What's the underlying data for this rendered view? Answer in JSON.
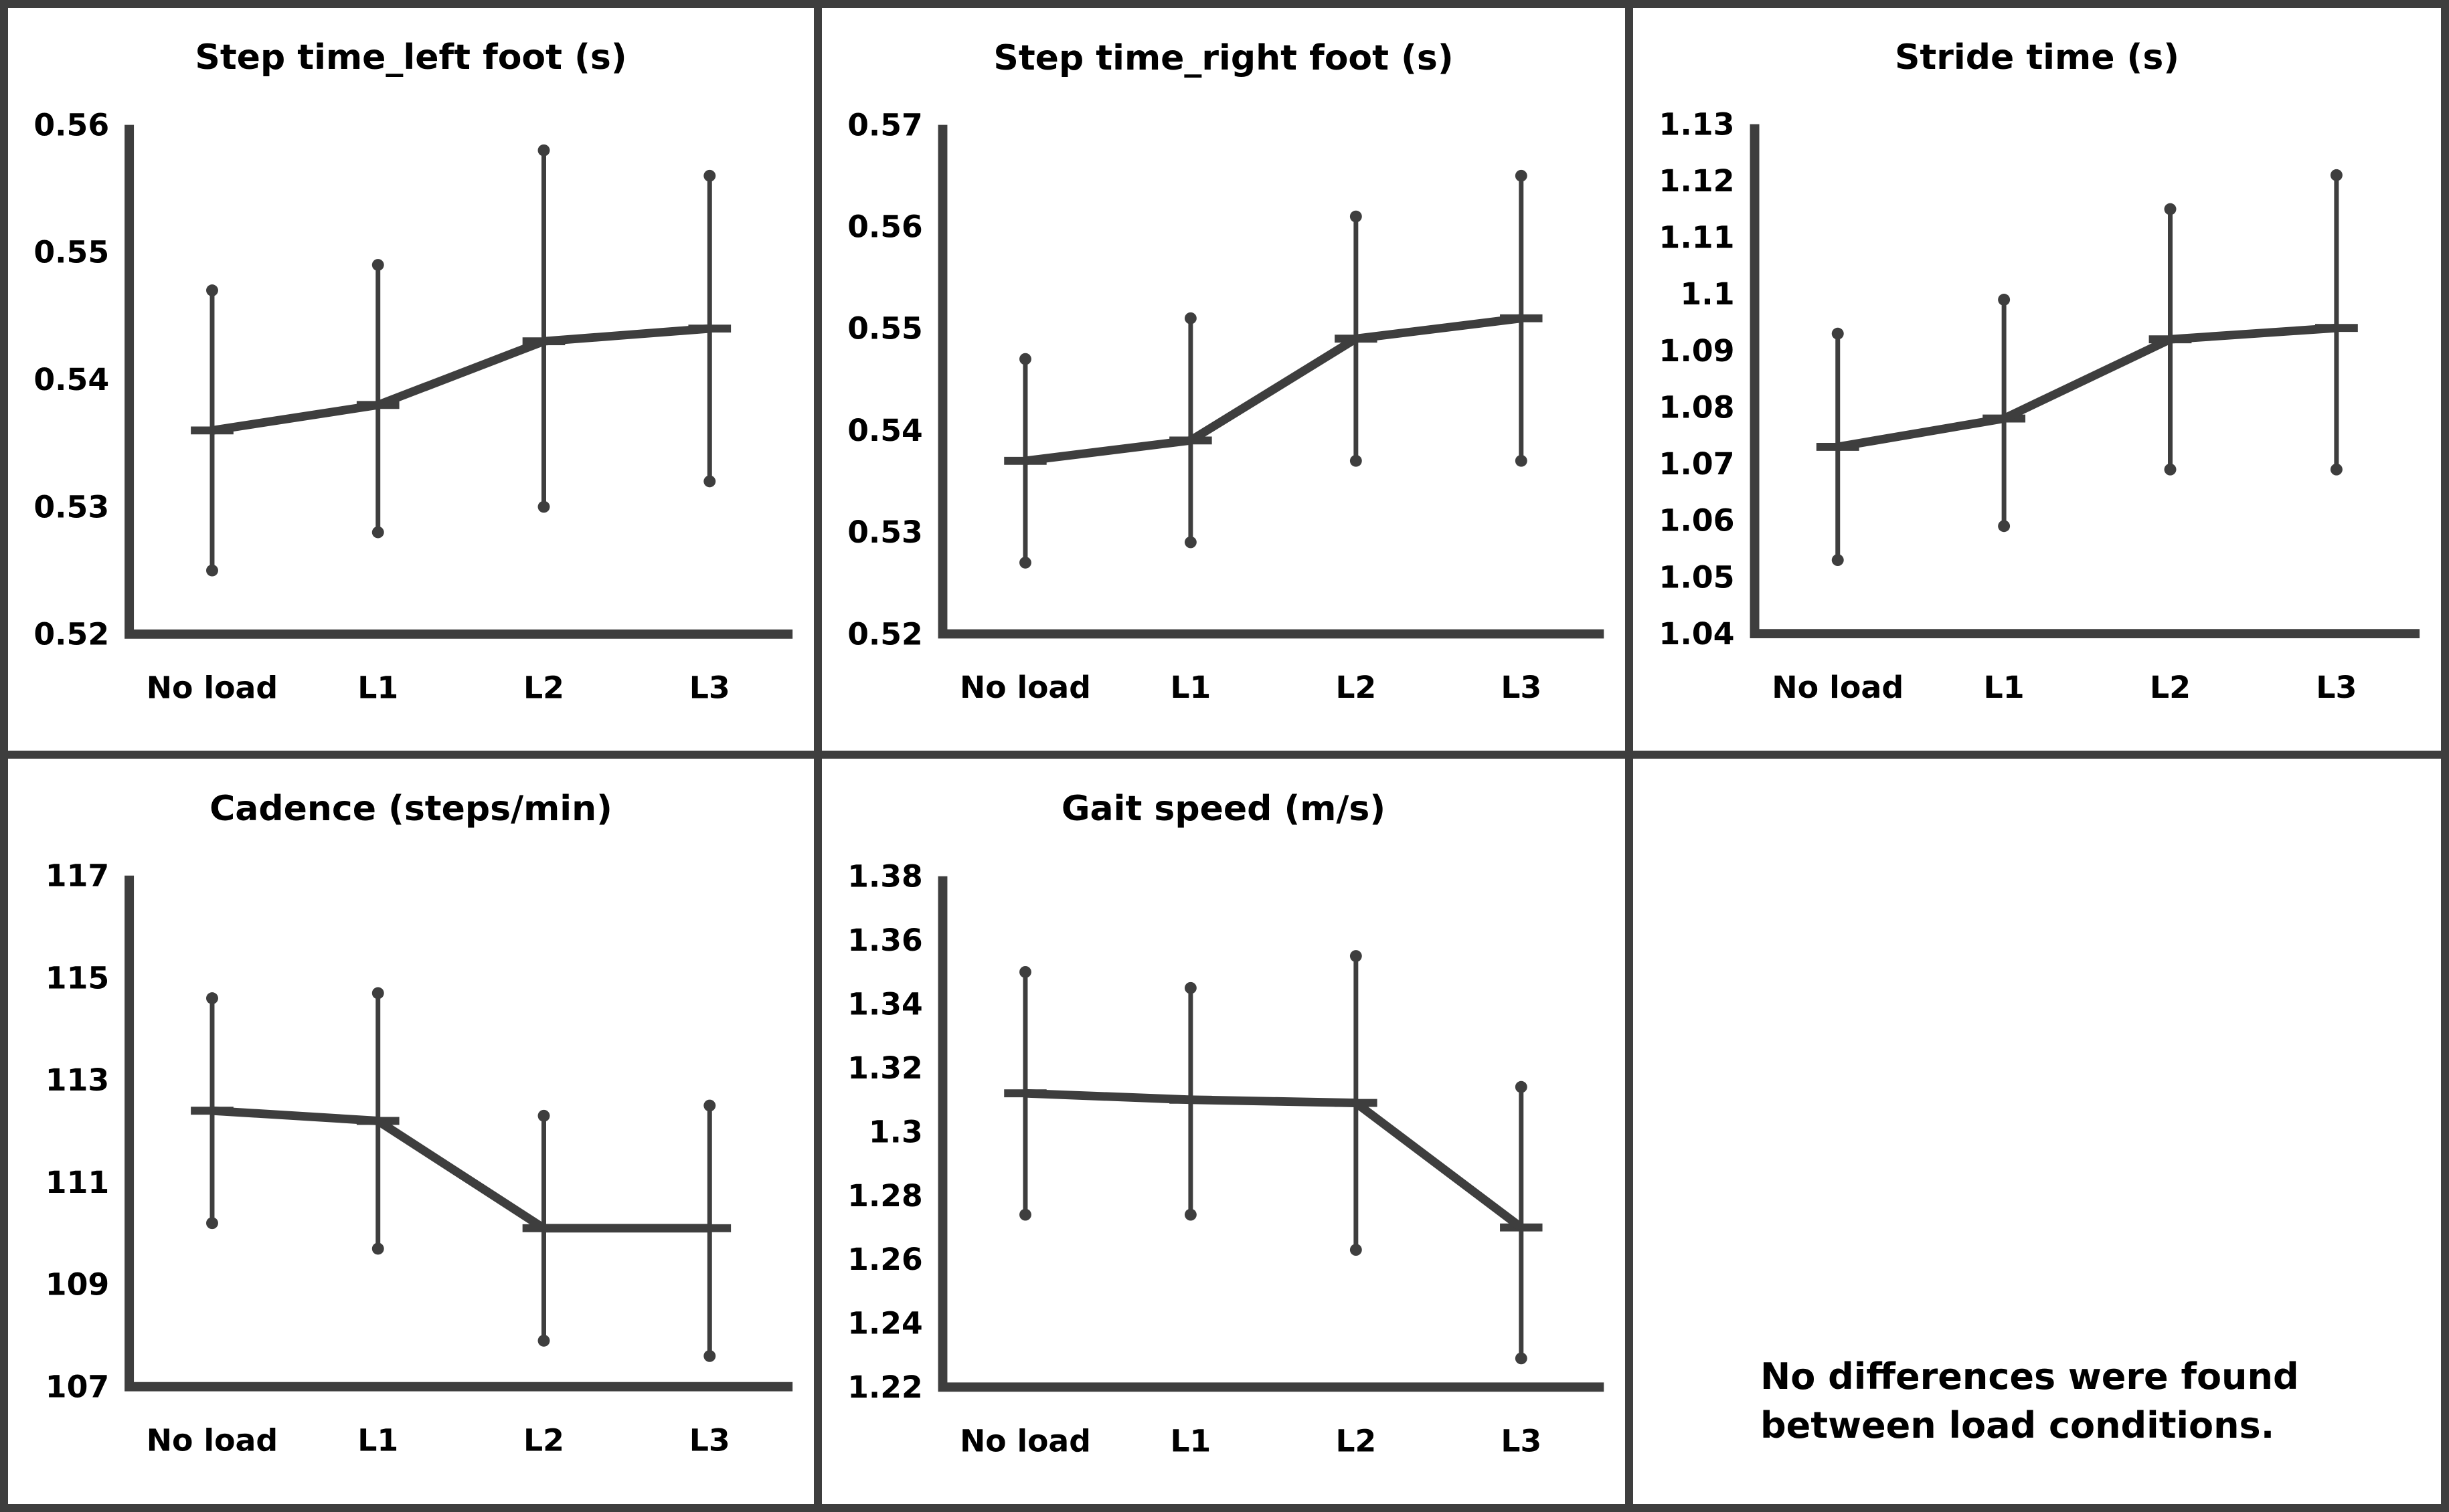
{
  "figure": {
    "note_line1": "No differences were found",
    "note_line2": "between load conditions."
  },
  "colors": {
    "ink": "#3e3e3e",
    "text": "#000000",
    "background": "#ffffff"
  },
  "categories": [
    "No load",
    "L1",
    "L2",
    "L3"
  ],
  "chart_data": [
    {
      "type": "line",
      "title": "Step time_left foot (s)",
      "categories": [
        "No load",
        "L1",
        "L2",
        "L3"
      ],
      "ylim": [
        0.52,
        0.56
      ],
      "yticks": [
        0.52,
        0.53,
        0.54,
        0.55,
        0.56
      ],
      "ytick_labels": [
        "0.52",
        "0.53",
        "0.54",
        "0.55",
        "0.56"
      ],
      "series": [
        {
          "name": "mean",
          "values": [
            0.536,
            0.538,
            0.543,
            0.544
          ]
        }
      ],
      "error_high": [
        0.547,
        0.549,
        0.558,
        0.556
      ],
      "error_low": [
        0.525,
        0.528,
        0.53,
        0.532
      ],
      "grid": false,
      "legend": "none"
    },
    {
      "type": "line",
      "title": "Step time_right foot (s)",
      "categories": [
        "No load",
        "L1",
        "L2",
        "L3"
      ],
      "ylim": [
        0.52,
        0.57
      ],
      "yticks": [
        0.52,
        0.53,
        0.54,
        0.55,
        0.56,
        0.57
      ],
      "ytick_labels": [
        "0.52",
        "0.53",
        "0.54",
        "0.55",
        "0.56",
        "0.57"
      ],
      "series": [
        {
          "name": "mean",
          "values": [
            0.537,
            0.539,
            0.549,
            0.551
          ]
        }
      ],
      "error_high": [
        0.547,
        0.551,
        0.561,
        0.565
      ],
      "error_low": [
        0.527,
        0.529,
        0.537,
        0.537
      ],
      "grid": false,
      "legend": "none"
    },
    {
      "type": "line",
      "title": "Stride time (s)",
      "categories": [
        "No load",
        "L1",
        "L2",
        "L3"
      ],
      "ylim": [
        1.04,
        1.13
      ],
      "yticks": [
        1.04,
        1.05,
        1.06,
        1.07,
        1.08,
        1.09,
        1.1,
        1.11,
        1.12,
        1.13
      ],
      "ytick_labels": [
        "1.04",
        "1.05",
        "1.06",
        "1.07",
        "1.08",
        "1.09",
        "1.1",
        "1.11",
        "1.12",
        "1.13"
      ],
      "series": [
        {
          "name": "mean",
          "values": [
            1.073,
            1.078,
            1.092,
            1.094
          ]
        }
      ],
      "error_high": [
        1.093,
        1.099,
        1.115,
        1.121
      ],
      "error_low": [
        1.053,
        1.059,
        1.069,
        1.069
      ],
      "grid": false,
      "legend": "none"
    },
    {
      "type": "line",
      "title": "Cadence (steps/min)",
      "categories": [
        "No load",
        "L1",
        "L2",
        "L3"
      ],
      "ylim": [
        107,
        117
      ],
      "yticks": [
        107,
        109,
        111,
        113,
        115,
        117
      ],
      "ytick_labels": [
        "107",
        "109",
        "111",
        "113",
        "115",
        "117"
      ],
      "series": [
        {
          "name": "mean",
          "values": [
            112.4,
            112.2,
            110.1,
            110.1
          ]
        }
      ],
      "error_high": [
        114.6,
        114.7,
        112.3,
        112.5
      ],
      "error_low": [
        110.2,
        109.7,
        107.9,
        107.6
      ],
      "grid": false,
      "legend": "none"
    },
    {
      "type": "line",
      "title": "Gait speed (m/s)",
      "categories": [
        "No load",
        "L1",
        "L2",
        "L3"
      ],
      "ylim": [
        1.22,
        1.38
      ],
      "yticks": [
        1.22,
        1.24,
        1.26,
        1.28,
        1.3,
        1.32,
        1.34,
        1.36,
        1.38
      ],
      "ytick_labels": [
        "1.22",
        "1.24",
        "1.26",
        "1.28",
        "1.3",
        "1.32",
        "1.34",
        "1.36",
        "1.38"
      ],
      "series": [
        {
          "name": "mean",
          "values": [
            1.312,
            1.31,
            1.309,
            1.27
          ]
        }
      ],
      "error_high": [
        1.35,
        1.345,
        1.355,
        1.314
      ],
      "error_low": [
        1.274,
        1.274,
        1.263,
        1.229
      ],
      "grid": false,
      "legend": "none"
    }
  ]
}
